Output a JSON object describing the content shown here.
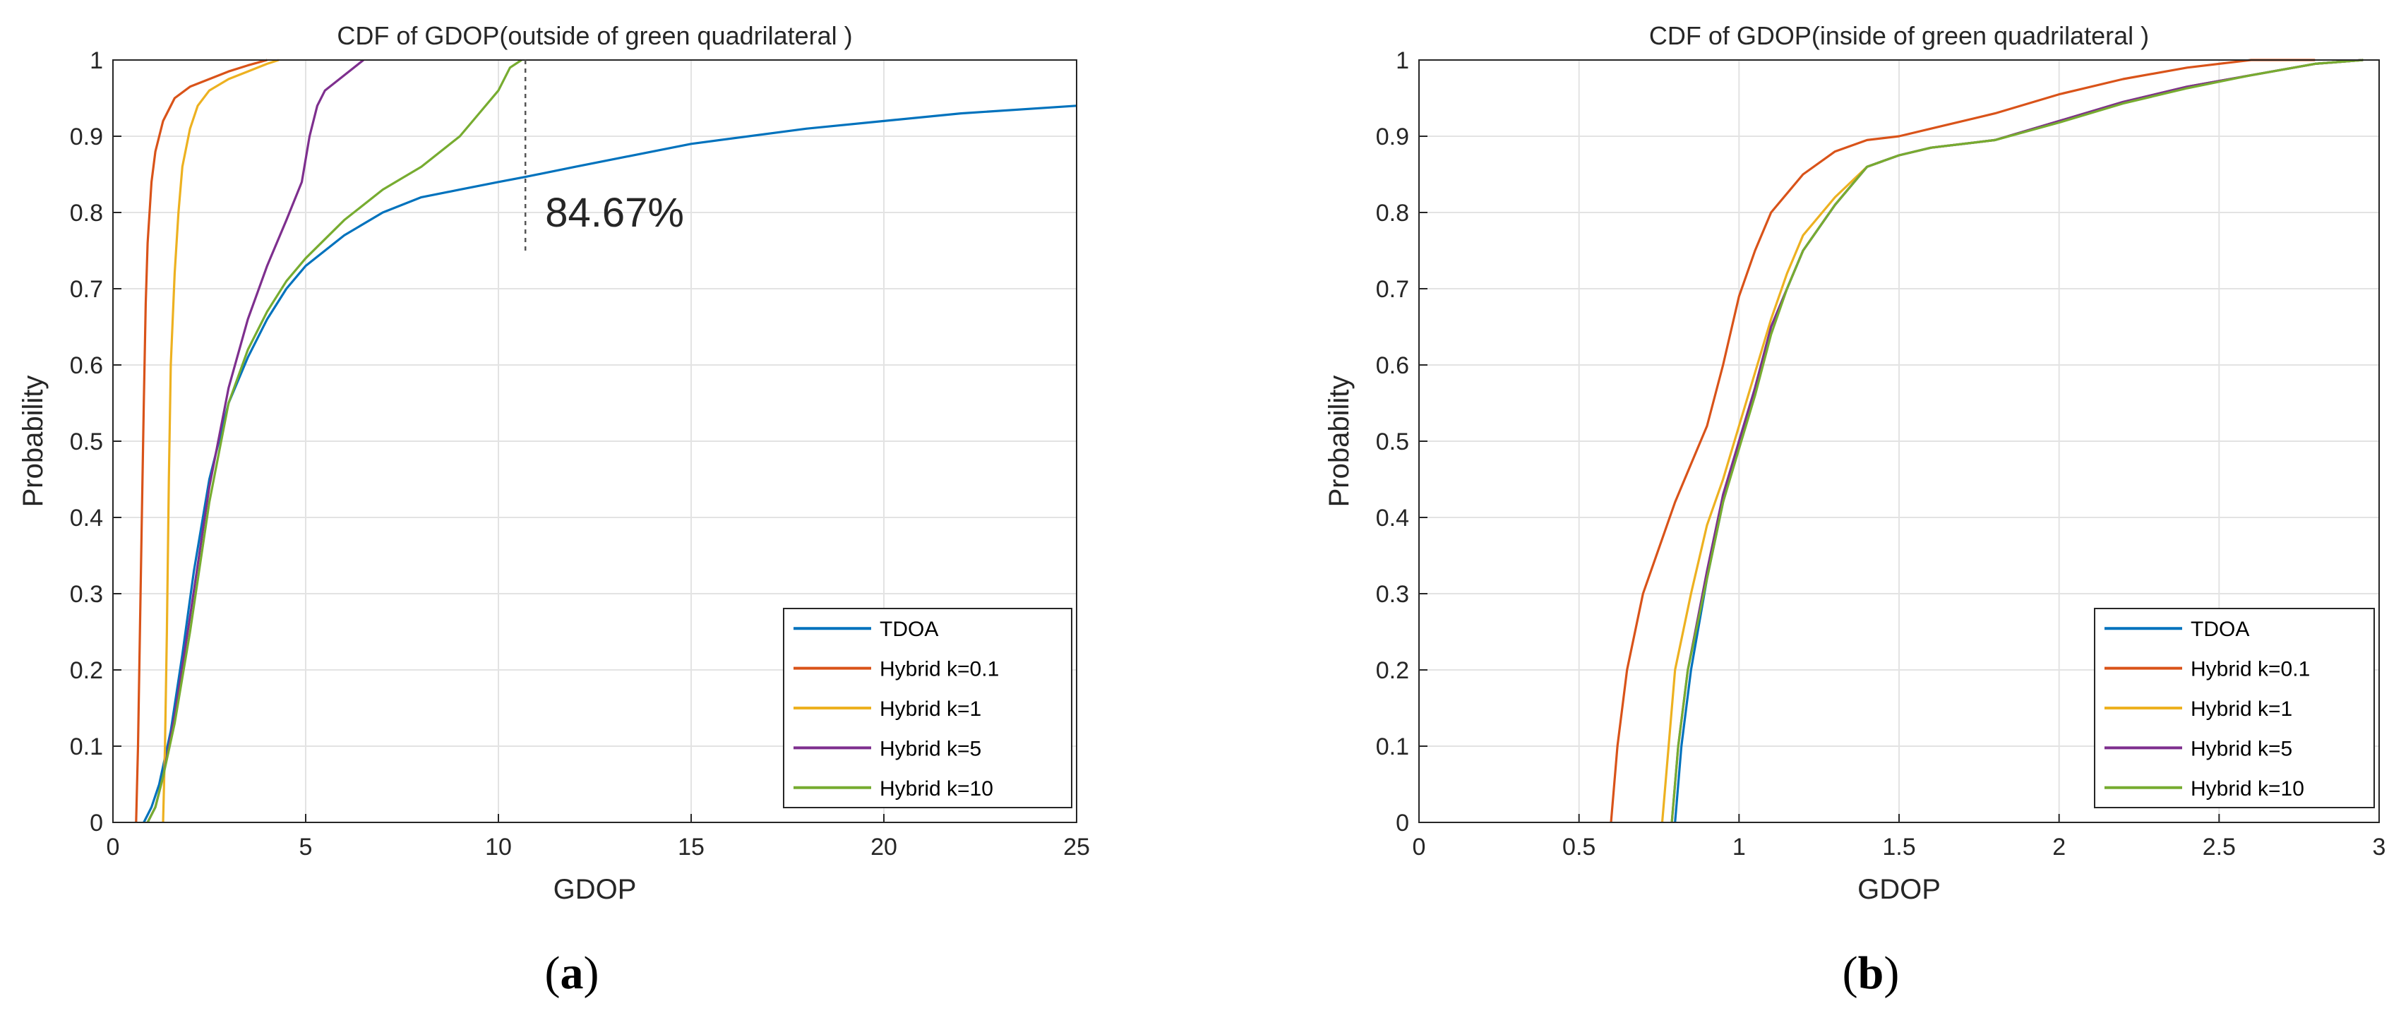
{
  "chart_data": [
    {
      "type": "line",
      "title": "CDF of GDOP(outside of green quadrilateral )",
      "xlabel": "GDOP",
      "ylabel": "Probability",
      "xlim": [
        0,
        25
      ],
      "ylim": [
        0,
        1
      ],
      "xticks": [
        0,
        5,
        10,
        15,
        20,
        25
      ],
      "yticks": [
        0,
        0.1,
        0.2,
        0.3,
        0.4,
        0.5,
        0.6,
        0.7,
        0.8,
        0.9,
        1
      ],
      "grid": true,
      "legend_position": "bottom-right",
      "panel_label": "(a)",
      "annotation": {
        "text": "84.67%",
        "x": 10.7,
        "y_from": 0.745,
        "y_to": 1.0
      },
      "series": [
        {
          "name": "TDOA",
          "color": "#0072BD",
          "x": [
            0.8,
            1.0,
            1.2,
            1.5,
            1.8,
            2.1,
            2.5,
            3.0,
            3.5,
            4.0,
            4.5,
            5.0,
            6.0,
            7.0,
            8.0,
            9.0,
            10.0,
            10.7,
            12.0,
            15.0,
            18.0,
            20.0,
            22.0,
            25.0
          ],
          "y": [
            0.0,
            0.02,
            0.05,
            0.12,
            0.22,
            0.33,
            0.45,
            0.55,
            0.61,
            0.66,
            0.7,
            0.73,
            0.77,
            0.8,
            0.82,
            0.83,
            0.84,
            0.8467,
            0.86,
            0.89,
            0.91,
            0.92,
            0.93,
            0.94
          ]
        },
        {
          "name": "Hybrid k=0.1",
          "color": "#D95319",
          "x": [
            0.6,
            0.65,
            0.7,
            0.75,
            0.8,
            0.85,
            0.9,
            1.0,
            1.1,
            1.3,
            1.6,
            2.0,
            2.5,
            3.0,
            3.5,
            4.0
          ],
          "y": [
            0.0,
            0.1,
            0.25,
            0.4,
            0.55,
            0.68,
            0.76,
            0.84,
            0.88,
            0.92,
            0.95,
            0.965,
            0.975,
            0.985,
            0.993,
            1.0
          ]
        },
        {
          "name": "Hybrid k=1",
          "color": "#EDB120",
          "x": [
            1.3,
            1.35,
            1.4,
            1.45,
            1.5,
            1.6,
            1.7,
            1.8,
            2.0,
            2.2,
            2.5,
            3.0,
            3.5,
            4.0,
            4.3
          ],
          "y": [
            0.0,
            0.1,
            0.25,
            0.45,
            0.6,
            0.72,
            0.8,
            0.86,
            0.91,
            0.94,
            0.96,
            0.975,
            0.985,
            0.995,
            1.0
          ]
        },
        {
          "name": "Hybrid k=5",
          "color": "#7E2F8E",
          "x": [
            0.9,
            1.1,
            1.3,
            1.6,
            2.0,
            2.5,
            3.0,
            3.5,
            4.0,
            4.5,
            4.9,
            5.1,
            5.3,
            5.5,
            6.0,
            6.5
          ],
          "y": [
            0.0,
            0.02,
            0.06,
            0.14,
            0.27,
            0.44,
            0.57,
            0.66,
            0.73,
            0.79,
            0.84,
            0.9,
            0.94,
            0.96,
            0.98,
            1.0
          ]
        },
        {
          "name": "Hybrid k=10",
          "color": "#77AC30",
          "x": [
            0.9,
            1.1,
            1.3,
            1.6,
            2.0,
            2.5,
            3.0,
            3.5,
            4.0,
            4.5,
            5.0,
            6.0,
            7.0,
            8.0,
            9.0,
            9.5,
            10.0,
            10.3,
            10.6
          ],
          "y": [
            0.0,
            0.02,
            0.06,
            0.13,
            0.25,
            0.42,
            0.55,
            0.62,
            0.67,
            0.71,
            0.74,
            0.79,
            0.83,
            0.86,
            0.9,
            0.93,
            0.96,
            0.99,
            1.0
          ]
        }
      ]
    },
    {
      "type": "line",
      "title": "CDF of GDOP(inside of green quadrilateral )",
      "xlabel": "GDOP",
      "ylabel": "Probability",
      "xlim": [
        0,
        3
      ],
      "ylim": [
        0,
        1
      ],
      "xticks": [
        0,
        0.5,
        1,
        1.5,
        2,
        2.5,
        3
      ],
      "yticks": [
        0,
        0.1,
        0.2,
        0.3,
        0.4,
        0.5,
        0.6,
        0.7,
        0.8,
        0.9,
        1
      ],
      "grid": true,
      "legend_position": "bottom-right",
      "panel_label": "(b)",
      "series": [
        {
          "name": "TDOA",
          "color": "#0072BD",
          "x": [
            0.8,
            0.82,
            0.85,
            0.9,
            0.95,
            1.0,
            1.05,
            1.1,
            1.15,
            1.2,
            1.3,
            1.4,
            1.5,
            1.6,
            1.8,
            2.0,
            2.2,
            2.4,
            2.6,
            2.8,
            2.95
          ],
          "y": [
            0.0,
            0.1,
            0.2,
            0.32,
            0.42,
            0.5,
            0.57,
            0.65,
            0.7,
            0.75,
            0.81,
            0.86,
            0.875,
            0.885,
            0.895,
            0.92,
            0.945,
            0.965,
            0.98,
            0.995,
            1.0
          ]
        },
        {
          "name": "Hybrid k=0.1",
          "color": "#D95319",
          "x": [
            0.6,
            0.62,
            0.65,
            0.7,
            0.75,
            0.8,
            0.85,
            0.9,
            0.95,
            1.0,
            1.05,
            1.1,
            1.2,
            1.3,
            1.4,
            1.5,
            1.6,
            1.8,
            2.0,
            2.2,
            2.4,
            2.6,
            2.8
          ],
          "y": [
            0.0,
            0.1,
            0.2,
            0.3,
            0.36,
            0.42,
            0.47,
            0.52,
            0.6,
            0.69,
            0.75,
            0.8,
            0.85,
            0.88,
            0.895,
            0.9,
            0.91,
            0.93,
            0.955,
            0.975,
            0.99,
            1.0,
            1.0
          ]
        },
        {
          "name": "Hybrid k=1",
          "color": "#EDB120",
          "x": [
            0.76,
            0.78,
            0.8,
            0.85,
            0.9,
            0.95,
            1.0,
            1.05,
            1.1,
            1.15,
            1.2,
            1.3,
            1.4,
            1.5,
            1.6,
            1.8,
            2.0,
            2.2,
            2.4,
            2.6,
            2.8,
            2.95
          ],
          "y": [
            0.0,
            0.1,
            0.2,
            0.3,
            0.39,
            0.45,
            0.52,
            0.59,
            0.66,
            0.72,
            0.77,
            0.82,
            0.86,
            0.875,
            0.885,
            0.895,
            0.92,
            0.945,
            0.965,
            0.98,
            0.995,
            1.0
          ]
        },
        {
          "name": "Hybrid k=5",
          "color": "#7E2F8E",
          "x": [
            0.79,
            0.81,
            0.84,
            0.9,
            0.95,
            1.0,
            1.05,
            1.1,
            1.15,
            1.2,
            1.3,
            1.4,
            1.5,
            1.6,
            1.8,
            2.0,
            2.2,
            2.4,
            2.6,
            2.8,
            2.95
          ],
          "y": [
            0.0,
            0.1,
            0.2,
            0.33,
            0.43,
            0.5,
            0.57,
            0.65,
            0.7,
            0.75,
            0.81,
            0.86,
            0.875,
            0.885,
            0.895,
            0.92,
            0.945,
            0.965,
            0.98,
            0.995,
            1.0
          ]
        },
        {
          "name": "Hybrid k=10",
          "color": "#77AC30",
          "x": [
            0.79,
            0.81,
            0.84,
            0.9,
            0.95,
            1.0,
            1.05,
            1.1,
            1.15,
            1.2,
            1.3,
            1.4,
            1.5,
            1.6,
            1.8,
            2.0,
            2.2,
            2.4,
            2.6,
            2.8,
            2.95
          ],
          "y": [
            0.0,
            0.1,
            0.2,
            0.32,
            0.42,
            0.49,
            0.56,
            0.64,
            0.7,
            0.75,
            0.81,
            0.86,
            0.875,
            0.885,
            0.895,
            0.918,
            0.943,
            0.963,
            0.98,
            0.995,
            1.0
          ]
        }
      ]
    }
  ]
}
